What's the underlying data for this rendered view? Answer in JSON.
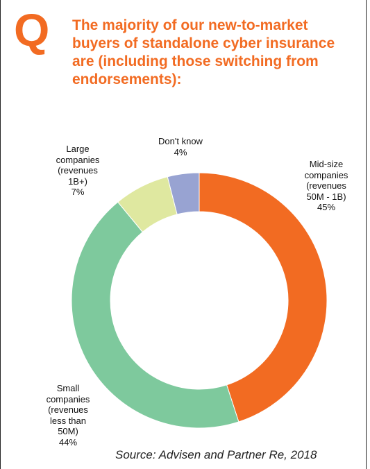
{
  "header": {
    "q": "Q",
    "question_lines": [
      "The majority of our new-to-market",
      "buyers of standalone cyber insurance",
      "are (including those switching from",
      "endorsements):"
    ]
  },
  "chart_data": {
    "type": "pie",
    "style": "donut",
    "slices": [
      {
        "label_lines": [
          "Mid-size",
          "companies",
          "(revenues",
          "50M - 1B)"
        ],
        "value": 45,
        "value_label": "45%",
        "color": "#f26b22"
      },
      {
        "label_lines": [
          "Small",
          "companies",
          "(revenues",
          "less than",
          "50M)"
        ],
        "value": 44,
        "value_label": "44%",
        "color": "#7ec99d"
      },
      {
        "label_lines": [
          "Large",
          "companies",
          "(revenues",
          "1B+)"
        ],
        "value": 7,
        "value_label": "7%",
        "color": "#dfe8a0"
      },
      {
        "label_lines": [
          "Don't know"
        ],
        "value": 4,
        "value_label": "4%",
        "color": "#98a3d2"
      }
    ],
    "start": "12 o'clock",
    "direction": "clockwise"
  },
  "footer": {
    "source": "Source: Advisen and Partner Re, 2018"
  }
}
